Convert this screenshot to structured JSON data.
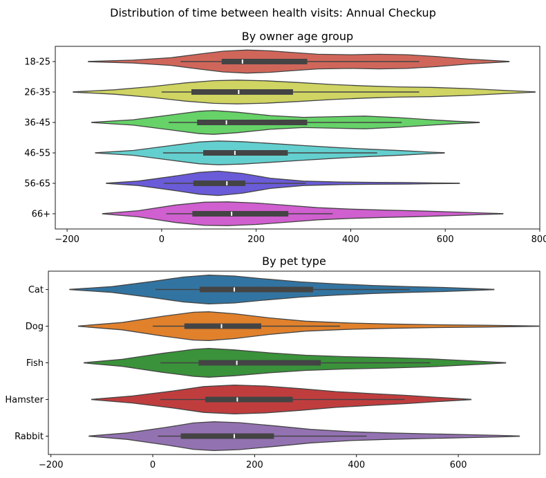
{
  "figure": {
    "suptitle": "Distribution of time between health visits: Annual Checkup"
  },
  "chart_data": [
    {
      "type": "violin",
      "title": "By owner age group",
      "xlabel": "",
      "ylabel": "",
      "orientation": "horizontal",
      "xlim": [
        -225,
        800
      ],
      "xticks": [
        -200,
        0,
        200,
        400,
        600,
        800
      ],
      "categories": [
        "18-25",
        "26-35",
        "36-45",
        "46-55",
        "56-65",
        "66+"
      ],
      "series": [
        {
          "label": "18-25",
          "color": "#d0665a",
          "min": -155,
          "max": 735,
          "whisker_low": 40,
          "q1": 127,
          "median": 171,
          "q3": 308,
          "whisker_high": 545,
          "density": [
            [
              -155,
              0.01
            ],
            [
              -60,
              0.12
            ],
            [
              20,
              0.32
            ],
            [
              80,
              0.62
            ],
            [
              130,
              0.85
            ],
            [
              180,
              0.95
            ],
            [
              230,
              0.88
            ],
            [
              280,
              0.74
            ],
            [
              330,
              0.6
            ],
            [
              400,
              0.56
            ],
            [
              460,
              0.6
            ],
            [
              520,
              0.56
            ],
            [
              580,
              0.42
            ],
            [
              650,
              0.2
            ],
            [
              735,
              0.01
            ]
          ]
        },
        {
          "label": "26-35",
          "color": "#cfd462",
          "min": -187,
          "max": 790,
          "whisker_low": 0,
          "q1": 63,
          "median": 163,
          "q3": 278,
          "whisker_high": 545,
          "density": [
            [
              -187,
              0.01
            ],
            [
              -100,
              0.18
            ],
            [
              -20,
              0.45
            ],
            [
              50,
              0.75
            ],
            [
              110,
              0.93
            ],
            [
              160,
              0.98
            ],
            [
              220,
              0.92
            ],
            [
              290,
              0.78
            ],
            [
              360,
              0.62
            ],
            [
              430,
              0.5
            ],
            [
              500,
              0.42
            ],
            [
              570,
              0.38
            ],
            [
              650,
              0.28
            ],
            [
              720,
              0.14
            ],
            [
              790,
              0.01
            ]
          ]
        },
        {
          "label": "36-45",
          "color": "#66d268",
          "min": -148,
          "max": 672,
          "whisker_low": 15,
          "q1": 75,
          "median": 137,
          "q3": 308,
          "whisker_high": 508,
          "density": [
            [
              -148,
              0.01
            ],
            [
              -60,
              0.22
            ],
            [
              20,
              0.62
            ],
            [
              80,
              0.92
            ],
            [
              110,
              0.98
            ],
            [
              160,
              0.84
            ],
            [
              230,
              0.56
            ],
            [
              300,
              0.42
            ],
            [
              370,
              0.48
            ],
            [
              430,
              0.52
            ],
            [
              500,
              0.4
            ],
            [
              570,
              0.22
            ],
            [
              620,
              0.1
            ],
            [
              672,
              0.01
            ]
          ]
        },
        {
          "label": "46-55",
          "color": "#64cfcf",
          "min": -140,
          "max": 598,
          "whisker_low": 3,
          "q1": 88,
          "median": 155,
          "q3": 267,
          "whisker_high": 456,
          "density": [
            [
              -140,
              0.01
            ],
            [
              -60,
              0.2
            ],
            [
              20,
              0.6
            ],
            [
              80,
              0.9
            ],
            [
              120,
              0.98
            ],
            [
              170,
              0.92
            ],
            [
              230,
              0.78
            ],
            [
              300,
              0.6
            ],
            [
              370,
              0.44
            ],
            [
              440,
              0.3
            ],
            [
              510,
              0.18
            ],
            [
              560,
              0.08
            ],
            [
              598,
              0.01
            ]
          ]
        },
        {
          "label": "56-65",
          "color": "#6a5bd8",
          "min": -117,
          "max": 630,
          "whisker_low": 5,
          "q1": 67,
          "median": 138,
          "q3": 177,
          "whisker_high": 305,
          "density": [
            [
              -117,
              0.01
            ],
            [
              -50,
              0.18
            ],
            [
              20,
              0.55
            ],
            [
              80,
              0.9
            ],
            [
              120,
              1.0
            ],
            [
              170,
              0.82
            ],
            [
              230,
              0.42
            ],
            [
              300,
              0.18
            ],
            [
              380,
              0.1
            ],
            [
              450,
              0.08
            ],
            [
              520,
              0.06
            ],
            [
              580,
              0.03
            ],
            [
              630,
              0.01
            ]
          ]
        },
        {
          "label": "66+",
          "color": "#d05fd0",
          "min": -125,
          "max": 722,
          "whisker_low": 10,
          "q1": 65,
          "median": 148,
          "q3": 268,
          "whisker_high": 362,
          "density": [
            [
              -125,
              0.01
            ],
            [
              -50,
              0.25
            ],
            [
              30,
              0.72
            ],
            [
              90,
              0.95
            ],
            [
              140,
              0.98
            ],
            [
              200,
              0.88
            ],
            [
              270,
              0.68
            ],
            [
              330,
              0.5
            ],
            [
              400,
              0.38
            ],
            [
              470,
              0.3
            ],
            [
              540,
              0.24
            ],
            [
              620,
              0.14
            ],
            [
              680,
              0.06
            ],
            [
              722,
              0.01
            ]
          ]
        }
      ]
    },
    {
      "type": "violin",
      "title": "By pet type",
      "xlabel": "",
      "ylabel": "",
      "orientation": "horizontal",
      "xlim": [
        -205,
        760
      ],
      "xticks": [
        -200,
        0,
        200,
        400,
        600
      ],
      "categories": [
        "Cat",
        "Dog",
        "Fish",
        "Hamster",
        "Rabbit"
      ],
      "series": [
        {
          "label": "Cat",
          "color": "#3274a1",
          "min": -163,
          "max": 670,
          "whisker_low": 5,
          "q1": 92,
          "median": 160,
          "q3": 315,
          "whisker_high": 505,
          "density": [
            [
              -163,
              0.01
            ],
            [
              -80,
              0.2
            ],
            [
              0,
              0.55
            ],
            [
              60,
              0.85
            ],
            [
              110,
              0.98
            ],
            [
              160,
              0.92
            ],
            [
              220,
              0.72
            ],
            [
              290,
              0.52
            ],
            [
              360,
              0.38
            ],
            [
              430,
              0.28
            ],
            [
              500,
              0.2
            ],
            [
              570,
              0.14
            ],
            [
              630,
              0.06
            ],
            [
              670,
              0.01
            ]
          ]
        },
        {
          "label": "Dog",
          "color": "#e1812c",
          "min": -146,
          "max": 758,
          "whisker_low": 0,
          "q1": 62,
          "median": 135,
          "q3": 213,
          "whisker_high": 368,
          "density": [
            [
              -146,
              0.01
            ],
            [
              -60,
              0.25
            ],
            [
              20,
              0.68
            ],
            [
              80,
              0.95
            ],
            [
              110,
              0.98
            ],
            [
              160,
              0.85
            ],
            [
              230,
              0.56
            ],
            [
              300,
              0.34
            ],
            [
              380,
              0.22
            ],
            [
              460,
              0.15
            ],
            [
              550,
              0.1
            ],
            [
              650,
              0.06
            ],
            [
              758,
              0.01
            ]
          ]
        },
        {
          "label": "Fish",
          "color": "#3a923a",
          "min": -135,
          "max": 693,
          "whisker_low": 15,
          "q1": 90,
          "median": 165,
          "q3": 330,
          "whisker_high": 545,
          "density": [
            [
              -135,
              0.01
            ],
            [
              -60,
              0.24
            ],
            [
              20,
              0.65
            ],
            [
              80,
              0.92
            ],
            [
              110,
              0.98
            ],
            [
              160,
              0.88
            ],
            [
              230,
              0.68
            ],
            [
              300,
              0.52
            ],
            [
              380,
              0.42
            ],
            [
              460,
              0.36
            ],
            [
              540,
              0.28
            ],
            [
              620,
              0.14
            ],
            [
              693,
              0.01
            ]
          ]
        },
        {
          "label": "Hamster",
          "color": "#c03d3e",
          "min": -120,
          "max": 625,
          "whisker_low": 15,
          "q1": 103,
          "median": 166,
          "q3": 275,
          "whisker_high": 495,
          "density": [
            [
              -120,
              0.01
            ],
            [
              -40,
              0.24
            ],
            [
              40,
              0.58
            ],
            [
              100,
              0.88
            ],
            [
              160,
              0.98
            ],
            [
              220,
              0.92
            ],
            [
              290,
              0.74
            ],
            [
              360,
              0.54
            ],
            [
              430,
              0.4
            ],
            [
              500,
              0.28
            ],
            [
              560,
              0.14
            ],
            [
              625,
              0.01
            ]
          ]
        },
        {
          "label": "Rabbit",
          "color": "#9372b2",
          "min": -125,
          "max": 720,
          "whisker_low": 10,
          "q1": 55,
          "median": 160,
          "q3": 238,
          "whisker_high": 420,
          "density": [
            [
              -125,
              0.01
            ],
            [
              -50,
              0.22
            ],
            [
              30,
              0.62
            ],
            [
              80,
              0.9
            ],
            [
              120,
              0.98
            ],
            [
              170,
              0.92
            ],
            [
              240,
              0.7
            ],
            [
              310,
              0.46
            ],
            [
              390,
              0.3
            ],
            [
              460,
              0.22
            ],
            [
              540,
              0.16
            ],
            [
              620,
              0.1
            ],
            [
              680,
              0.05
            ],
            [
              720,
              0.01
            ]
          ]
        }
      ]
    }
  ]
}
